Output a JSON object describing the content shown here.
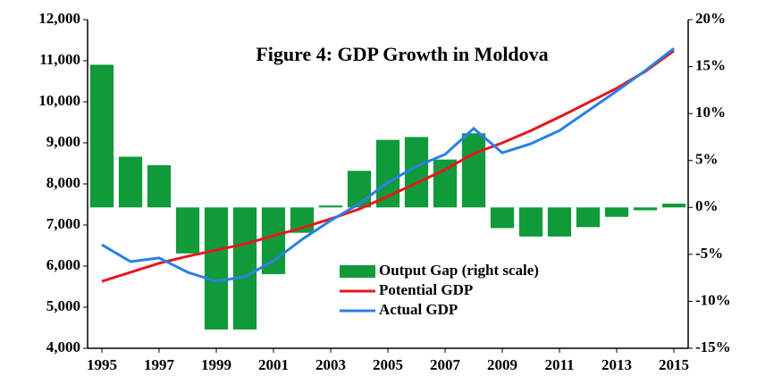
{
  "chart_data": {
    "type": "bar-line",
    "title": "Figure 4: GDP Growth in Moldova",
    "x": [
      1995,
      1996,
      1997,
      1998,
      1999,
      2000,
      2001,
      2002,
      2003,
      2004,
      2005,
      2006,
      2007,
      2008,
      2009,
      2010,
      2011,
      2012,
      2013,
      2014,
      2015
    ],
    "xlim": [
      1994.5,
      2015.5
    ],
    "xticks": [
      1995,
      1997,
      1999,
      2001,
      2003,
      2005,
      2007,
      2009,
      2011,
      2013,
      2015
    ],
    "ylim": [
      4000,
      12000
    ],
    "yticks": [
      {
        "value": 4000,
        "label": "4,000"
      },
      {
        "value": 5000,
        "label": "5,000"
      },
      {
        "value": 6000,
        "label": "6,000"
      },
      {
        "value": 7000,
        "label": "7,000"
      },
      {
        "value": 8000,
        "label": "8,000"
      },
      {
        "value": 9000,
        "label": "9,000"
      },
      {
        "value": 10000,
        "label": "10,000"
      },
      {
        "value": 11000,
        "label": "11,000"
      },
      {
        "value": 12000,
        "label": "12,000"
      }
    ],
    "y2lim": [
      -15,
      20
    ],
    "y2ticks": [
      {
        "value": -15,
        "label": "-15%"
      },
      {
        "value": -10,
        "label": "-10%"
      },
      {
        "value": -5,
        "label": "-5%"
      },
      {
        "value": 0,
        "label": "0%"
      },
      {
        "value": 5,
        "label": "5%"
      },
      {
        "value": 10,
        "label": "10%"
      },
      {
        "value": 15,
        "label": "15%"
      },
      {
        "value": 20,
        "label": "20%"
      }
    ],
    "series": [
      {
        "name": "Output Gap (right scale)",
        "kind": "bar",
        "axis": "y2",
        "color": "#109a3a",
        "values": [
          15.2,
          5.4,
          4.5,
          -4.9,
          -13.0,
          -13.0,
          -7.1,
          -2.7,
          0.2,
          3.9,
          7.2,
          7.5,
          5.1,
          7.9,
          -2.2,
          -3.1,
          -3.1,
          -2.1,
          -1.0,
          -0.3,
          0.4
        ]
      },
      {
        "name": "Potential GDP",
        "kind": "line",
        "color": "#e8161b",
        "values": [
          5630,
          5850,
          6070,
          6240,
          6390,
          6540,
          6740,
          6930,
          7150,
          7390,
          7700,
          8020,
          8350,
          8740,
          9000,
          9300,
          9630,
          9980,
          10330,
          10740,
          11240
        ]
      },
      {
        "name": "Actual GDP",
        "kind": "line",
        "color": "#2a7fe6",
        "values": [
          6520,
          6110,
          6200,
          5850,
          5630,
          5740,
          6130,
          6650,
          7110,
          7520,
          8040,
          8430,
          8720,
          9350,
          8760,
          8980,
          9300,
          9780,
          10260,
          10760,
          11300
        ]
      }
    ]
  }
}
